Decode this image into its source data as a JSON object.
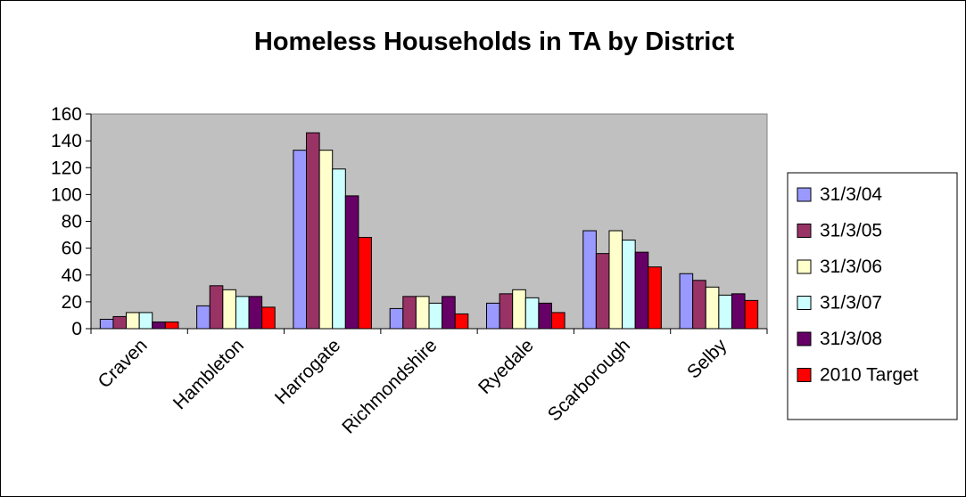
{
  "chart_data": {
    "type": "bar",
    "title": "Homeless Households in TA by District",
    "xlabel": "",
    "ylabel": "",
    "ylim": [
      0,
      160
    ],
    "yticks": [
      0,
      20,
      40,
      60,
      80,
      100,
      120,
      140,
      160
    ],
    "grid": false,
    "plot_background": "#C0C0C0",
    "legend_position": "right",
    "categories": [
      "Craven",
      "Hambleton",
      "Harrogate",
      "Richmondshire",
      "Ryedale",
      "Scarborough",
      "Selby"
    ],
    "series": [
      {
        "name": "31/3/04",
        "color": "#9999FF",
        "values": [
          7,
          17,
          133,
          15,
          19,
          73,
          41
        ]
      },
      {
        "name": "31/3/05",
        "color": "#993366",
        "values": [
          9,
          32,
          146,
          24,
          26,
          56,
          36
        ]
      },
      {
        "name": "31/3/06",
        "color": "#FFFFCC",
        "values": [
          12,
          29,
          133,
          24,
          29,
          73,
          31
        ]
      },
      {
        "name": "31/3/07",
        "color": "#CCFFFF",
        "values": [
          12,
          24,
          119,
          19,
          23,
          66,
          25
        ]
      },
      {
        "name": "31/3/08",
        "color": "#660066",
        "values": [
          5,
          24,
          99,
          24,
          19,
          57,
          26
        ]
      },
      {
        "name": "2010 Target",
        "color": "#FF0000",
        "values": [
          5,
          16,
          68,
          11,
          12,
          46,
          21
        ]
      }
    ]
  }
}
